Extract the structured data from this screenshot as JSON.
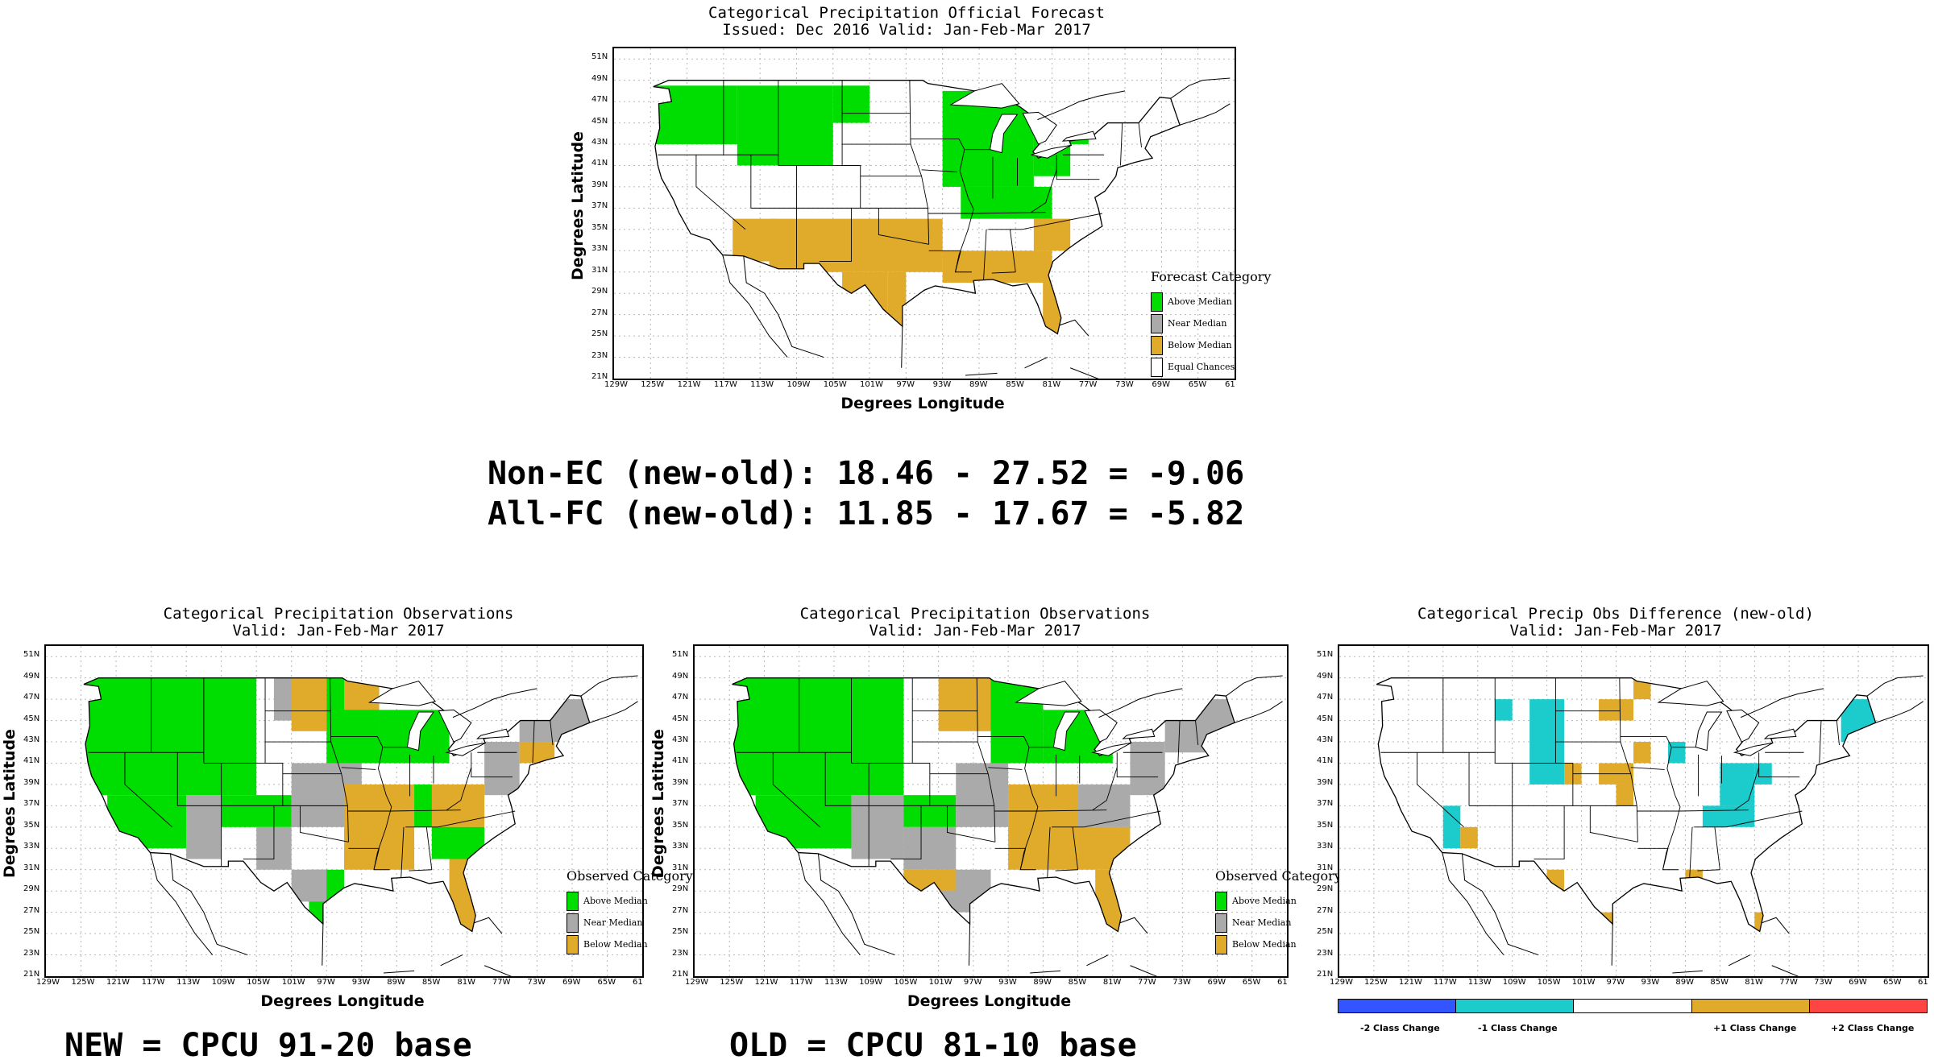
{
  "colors": {
    "above": "#00dd00",
    "near": "#aaaaaa",
    "below": "#e0aa2a",
    "ec": "#ffffff",
    "cyan": "#1ccbcb",
    "red": "#ff4444",
    "blue": "#3355ff",
    "grid": "#b8b8b8"
  },
  "axes": {
    "x_ticks": [
      "129W",
      "125W",
      "121W",
      "117W",
      "113W",
      "109W",
      "105W",
      "101W",
      "97W",
      "93W",
      "89W",
      "85W",
      "81W",
      "77W",
      "73W",
      "69W",
      "65W",
      "61"
    ],
    "y_ticks": [
      "51N",
      "49N",
      "47N",
      "45N",
      "43N",
      "41N",
      "39N",
      "37N",
      "35N",
      "33N",
      "31N",
      "29N",
      "27N",
      "25N",
      "23N",
      "21N"
    ],
    "xlabel": "Degrees Longitude",
    "ylabel": "Degrees Latitude"
  },
  "maps": {
    "forecast": {
      "title_1": "Categorical Precipitation Official Forecast",
      "title_2": "Issued: Dec 2016 Valid: Jan-Feb-Mar 2017",
      "legend_title": "Forecast Category",
      "legend": [
        {
          "label": "Above Median",
          "color": "#00dd00"
        },
        {
          "label": "Near Median",
          "color": "#aaaaaa"
        },
        {
          "label": "Below Median",
          "color": "#e0aa2a"
        },
        {
          "label": "Equal Chances",
          "color": "#ffffff"
        }
      ],
      "regions": [
        {
          "category": "above",
          "lon": [
            -126.5,
            -115.5
          ],
          "lat": [
            48.5,
            43
          ]
        },
        {
          "category": "above",
          "lon": [
            -115.5,
            -105
          ],
          "lat": [
            48.5,
            41
          ]
        },
        {
          "category": "above",
          "lon": [
            -105,
            -101
          ],
          "lat": [
            48.5,
            45
          ]
        },
        {
          "category": "above",
          "lon": [
            -93,
            -83
          ],
          "lat": [
            48,
            39
          ]
        },
        {
          "category": "above",
          "lon": [
            -91,
            -81
          ],
          "lat": [
            39,
            36
          ]
        },
        {
          "category": "above",
          "lon": [
            -83,
            -79
          ],
          "lat": [
            45,
            40
          ]
        },
        {
          "category": "above",
          "lon": [
            -79,
            -77
          ],
          "lat": [
            45,
            43
          ]
        },
        {
          "category": "below",
          "lon": [
            -116,
            -111
          ],
          "lat": [
            36,
            32
          ]
        },
        {
          "category": "below",
          "lon": [
            -112,
            -93
          ],
          "lat": [
            36,
            31
          ]
        },
        {
          "category": "below",
          "lon": [
            -104,
            -99
          ],
          "lat": [
            31,
            27
          ]
        },
        {
          "category": "below",
          "lon": [
            -99,
            -97
          ],
          "lat": [
            31,
            25
          ]
        },
        {
          "category": "below",
          "lon": [
            -93,
            -81
          ],
          "lat": [
            33,
            30
          ]
        },
        {
          "category": "below",
          "lon": [
            -83,
            -79
          ],
          "lat": [
            36,
            33
          ]
        },
        {
          "category": "below",
          "lon": [
            -82,
            -80
          ],
          "lat": [
            30,
            25
          ]
        }
      ]
    },
    "new_obs": {
      "title_1": "Categorical Precipitation Observations",
      "title_2": "Valid: Jan-Feb-Mar 2017",
      "legend_title": "Observed Category",
      "legend": [
        {
          "label": "Above Median",
          "color": "#00dd00"
        },
        {
          "label": "Near Median",
          "color": "#aaaaaa"
        },
        {
          "label": "Below Median",
          "color": "#e0aa2a"
        }
      ],
      "regions": [
        {
          "category": "above",
          "lon": [
            -124.5,
            -105
          ],
          "lat": [
            49,
            38
          ]
        },
        {
          "category": "above",
          "lon": [
            -122,
            -113
          ],
          "lat": [
            38,
            33
          ]
        },
        {
          "category": "near",
          "lon": [
            -113,
            -109
          ],
          "lat": [
            38,
            32
          ]
        },
        {
          "category": "above",
          "lon": [
            -109,
            -101
          ],
          "lat": [
            38,
            35
          ]
        },
        {
          "category": "near",
          "lon": [
            -105,
            -101
          ],
          "lat": [
            35,
            31
          ]
        },
        {
          "category": "near",
          "lon": [
            -103,
            -99
          ],
          "lat": [
            49,
            45
          ]
        },
        {
          "category": "below",
          "lon": [
            -101,
            -97
          ],
          "lat": [
            49,
            44
          ]
        },
        {
          "category": "above",
          "lon": [
            -97,
            -91
          ],
          "lat": [
            49,
            41
          ]
        },
        {
          "category": "below",
          "lon": [
            -95,
            -91
          ],
          "lat": [
            49,
            46
          ]
        },
        {
          "category": "above",
          "lon": [
            -91,
            -83
          ],
          "lat": [
            46,
            41
          ]
        },
        {
          "category": "near",
          "lon": [
            -101,
            -93
          ],
          "lat": [
            41,
            35
          ]
        },
        {
          "category": "below",
          "lon": [
            -95,
            -87
          ],
          "lat": [
            39,
            31
          ]
        },
        {
          "category": "above",
          "lon": [
            -87,
            -83
          ],
          "lat": [
            39,
            35
          ]
        },
        {
          "category": "below",
          "lon": [
            -85,
            -79
          ],
          "lat": [
            39,
            35
          ]
        },
        {
          "category": "near",
          "lon": [
            -79,
            -75
          ],
          "lat": [
            43,
            38
          ]
        },
        {
          "category": "near",
          "lon": [
            -75,
            -67
          ],
          "lat": [
            47,
            43
          ]
        },
        {
          "category": "below",
          "lon": [
            -75,
            -71
          ],
          "lat": [
            43,
            41
          ]
        },
        {
          "category": "above",
          "lon": [
            -85,
            -79
          ],
          "lat": [
            35,
            32
          ]
        },
        {
          "category": "below",
          "lon": [
            -83,
            -79
          ],
          "lat": [
            32,
            25
          ]
        },
        {
          "category": "above",
          "lon": [
            -99,
            -95
          ],
          "lat": [
            31,
            26
          ]
        },
        {
          "category": "near",
          "lon": [
            -101,
            -97
          ],
          "lat": [
            31,
            28
          ]
        }
      ]
    },
    "old_obs": {
      "title_1": "Categorical Precipitation Observations",
      "title_2": "Valid: Jan-Feb-Mar 2017",
      "legend_title": "Observed Category",
      "legend": [
        {
          "label": "Above Median",
          "color": "#00dd00"
        },
        {
          "label": "Near Median",
          "color": "#aaaaaa"
        },
        {
          "label": "Below Median",
          "color": "#e0aa2a"
        }
      ],
      "regions": [
        {
          "category": "above",
          "lon": [
            -124.5,
            -105
          ],
          "lat": [
            49,
            38
          ]
        },
        {
          "category": "above",
          "lon": [
            -122,
            -111
          ],
          "lat": [
            38,
            33
          ]
        },
        {
          "category": "near",
          "lon": [
            -111,
            -105
          ],
          "lat": [
            38,
            32
          ]
        },
        {
          "category": "above",
          "lon": [
            -105,
            -99
          ],
          "lat": [
            38,
            35
          ]
        },
        {
          "category": "near",
          "lon": [
            -105,
            -99
          ],
          "lat": [
            35,
            31
          ]
        },
        {
          "category": "below",
          "lon": [
            -101,
            -95
          ],
          "lat": [
            49,
            44
          ]
        },
        {
          "category": "above",
          "lon": [
            -95,
            -89
          ],
          "lat": [
            49,
            41
          ]
        },
        {
          "category": "above",
          "lon": [
            -89,
            -81
          ],
          "lat": [
            46,
            41
          ]
        },
        {
          "category": "near",
          "lon": [
            -99,
            -93
          ],
          "lat": [
            41,
            35
          ]
        },
        {
          "category": "below",
          "lon": [
            -93,
            -85
          ],
          "lat": [
            39,
            31
          ]
        },
        {
          "category": "near",
          "lon": [
            -85,
            -79
          ],
          "lat": [
            39,
            35
          ]
        },
        {
          "category": "near",
          "lon": [
            -79,
            -75
          ],
          "lat": [
            43,
            38
          ]
        },
        {
          "category": "near",
          "lon": [
            -75,
            -67
          ],
          "lat": [
            47,
            42
          ]
        },
        {
          "category": "below",
          "lon": [
            -85,
            -79
          ],
          "lat": [
            35,
            31
          ]
        },
        {
          "category": "below",
          "lon": [
            -83,
            -79
          ],
          "lat": [
            31,
            25
          ]
        },
        {
          "category": "near",
          "lon": [
            -101,
            -95
          ],
          "lat": [
            31,
            27
          ]
        },
        {
          "category": "below",
          "lon": [
            -105,
            -99
          ],
          "lat": [
            31,
            29
          ]
        }
      ]
    },
    "diff": {
      "title_1": "Categorical Precip Obs Difference (new-old)",
      "title_2": "Valid: Jan-Feb-Mar 2017",
      "scale": [
        {
          "label": "-2 Class Change",
          "color": "#3355ff"
        },
        {
          "label": "-1 Class Change",
          "color": "#1ccbcb"
        },
        {
          "label": "",
          "color": "#ffffff"
        },
        {
          "label": "+1 Class Change",
          "color": "#e0aa2a"
        },
        {
          "label": "+2 Class Change",
          "color": "#ff4444"
        }
      ],
      "regions": [
        {
          "category": "cyan",
          "lon": [
            -111,
            -109
          ],
          "lat": [
            47,
            45
          ]
        },
        {
          "category": "cyan",
          "lon": [
            -107,
            -103
          ],
          "lat": [
            47,
            39
          ]
        },
        {
          "category": "below",
          "lon": [
            -103,
            -101
          ],
          "lat": [
            41,
            39
          ]
        },
        {
          "category": "below",
          "lon": [
            -99,
            -95
          ],
          "lat": [
            47,
            45
          ]
        },
        {
          "category": "below",
          "lon": [
            -95,
            -93
          ],
          "lat": [
            49,
            47
          ]
        },
        {
          "category": "below",
          "lon": [
            -95,
            -93
          ],
          "lat": [
            43,
            41
          ]
        },
        {
          "category": "cyan",
          "lon": [
            -91,
            -89
          ],
          "lat": [
            43,
            41
          ]
        },
        {
          "category": "below",
          "lon": [
            -99,
            -95
          ],
          "lat": [
            41,
            39
          ]
        },
        {
          "category": "below",
          "lon": [
            -97,
            -95
          ],
          "lat": [
            39,
            37
          ]
        },
        {
          "category": "cyan",
          "lon": [
            -85,
            -81
          ],
          "lat": [
            41,
            37
          ]
        },
        {
          "category": "cyan",
          "lon": [
            -81,
            -79
          ],
          "lat": [
            41,
            39
          ]
        },
        {
          "category": "cyan",
          "lon": [
            -87,
            -81
          ],
          "lat": [
            37,
            35
          ]
        },
        {
          "category": "cyan",
          "lon": [
            -71,
            -67
          ],
          "lat": [
            47,
            43
          ]
        },
        {
          "category": "cyan",
          "lon": [
            -117,
            -115
          ],
          "lat": [
            37,
            33
          ]
        },
        {
          "category": "below",
          "lon": [
            -115,
            -113
          ],
          "lat": [
            35,
            33
          ]
        },
        {
          "category": "below",
          "lon": [
            -105,
            -103
          ],
          "lat": [
            31,
            29
          ]
        },
        {
          "category": "below",
          "lon": [
            -99,
            -97
          ],
          "lat": [
            27,
            25
          ]
        },
        {
          "category": "below",
          "lon": [
            -89,
            -87
          ],
          "lat": [
            31,
            29
          ]
        },
        {
          "category": "below",
          "lon": [
            -81,
            -79
          ],
          "lat": [
            27,
            25
          ]
        }
      ]
    }
  },
  "scores": {
    "line_1": "Non-EC (new-old): 18.46 - 27.52 = -9.06",
    "line_2": "All-FC (new-old): 11.85 - 17.67 = -5.82"
  },
  "bases": {
    "new": "NEW = CPCU 91-20 base",
    "old": "OLD = CPCU 81-10 base"
  }
}
